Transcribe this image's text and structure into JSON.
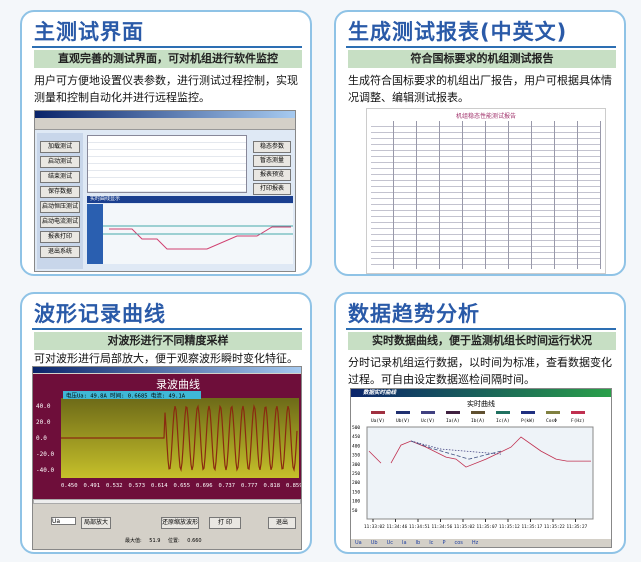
{
  "panels": [
    {
      "title": "主测试界面",
      "subtitle": "直观完善的测试界面，可对机组进行软件监控",
      "desc": "用户可方便地设置仪表参数，进行测试过程控制，实现测量和控制自动化并进行远程监控。",
      "side_buttons": [
        "加载测试",
        "启动测试",
        "结束测试",
        "保存数据",
        "启动恒压测试",
        "启动电流测试",
        "报表打印",
        "退出系统"
      ],
      "right_buttons": [
        "稳态参数",
        "暂态测量",
        "报表预览",
        "打印报表"
      ],
      "chart_label": "实时曲线显示"
    },
    {
      "title": "生成测试报表(中英文)",
      "subtitle": "符合国标要求的机组测试报告",
      "desc": "生成符合国标要求的机组出厂报告，用户可根据具体情况调整、编辑测试报表。",
      "report_title": "机组稳态性能测试报告"
    },
    {
      "title": "波形记录曲线",
      "subtitle": "对波形进行不同精度采样",
      "desc": "可对波形进行局部放大，便于观察波形瞬时变化特征。",
      "window_title": "录波曲线",
      "chart_title": "录波曲线",
      "legend": "电压Ua: 49.8A  时间: 0.6685 电流: 49.1A",
      "y_ticks": [
        "40.0",
        "20.0",
        "0.0",
        "-20.0",
        "-40.0"
      ],
      "x_ticks": [
        "0.450",
        "0.491",
        "0.532",
        "0.573",
        "0.614",
        "0.655",
        "0.696",
        "0.737",
        "0.777",
        "0.818",
        "0.859"
      ],
      "select_value": "Ua",
      "buttons": [
        "局部放大",
        "还原缩放波形",
        "打 印",
        "退出"
      ],
      "status": [
        "最大值:",
        "51.9",
        "位置:",
        "0.660"
      ],
      "colors": {
        "plot_bg": "#a4a020",
        "frame": "#6e0e3a",
        "wave": "#8a2a10"
      }
    },
    {
      "title": "数据趋势分析",
      "subtitle": "实时数据曲线，便于监测机组长时间运行状况",
      "desc": "分时记录机组运行数据，以时间为标准，查看数据变化过程。可自由设定数据巡检间隔时间。",
      "window_title": "数据实时曲线",
      "chart_title": "实时曲线",
      "legend": [
        "Ua(V)",
        "Ub(V)",
        "Uc(V)",
        "Ia(A)",
        "Ib(A)",
        "Ic(A)",
        "P(kW)",
        "CosΦ",
        "F(Hz)"
      ],
      "y_ticks": [
        "500",
        "450",
        "400",
        "350",
        "300",
        "250",
        "200",
        "150",
        "100",
        "50"
      ],
      "x_ticks": [
        "11:33:02",
        "11:34:46",
        "11:34:51",
        "11:34:56",
        "11:35:02",
        "11:35:07",
        "11:35:12",
        "11:35:17",
        "11:35:22",
        "11:35:27"
      ],
      "checks": [
        "Ua",
        "Ub",
        "Uc",
        "Ia",
        "Ib",
        "Ic",
        "P",
        "cos",
        "Hz"
      ]
    }
  ]
}
